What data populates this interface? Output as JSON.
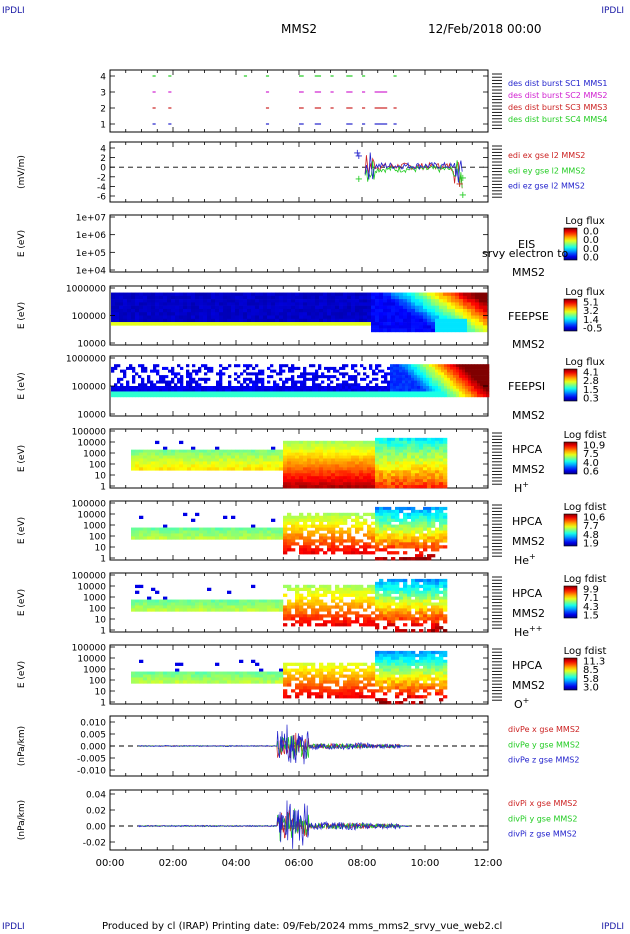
{
  "corners": {
    "tl": "IPDLI",
    "tr": "IPDLI",
    "bl": "IPDLI",
    "br": "IPDLI"
  },
  "header": {
    "spacecraft": "MMS2",
    "date": "12/Feb/2018 00:00"
  },
  "footer": "Produced by cl (IRAP)   Printing date: 09/Feb/2024   mms_mms2_srvy_vue_web2.cl",
  "colors": {
    "blue": "#2222cc",
    "red": "#cc2222",
    "magenta": "#d020d0",
    "green": "#22cc22",
    "black": "#000000"
  },
  "chart_data": [
    {
      "type": "scatter",
      "id": "burst",
      "yticks": [
        "4",
        "3",
        "2",
        "1"
      ],
      "series": [
        {
          "name": "des dist burst SC1 MMS1",
          "color": "#2222cc",
          "level": 1
        },
        {
          "name": "des dist burst SC2 MMS2",
          "color": "#d020d0",
          "level": 3
        },
        {
          "name": "des dist burst SC3 MMS3",
          "color": "#cc2222",
          "level": 2
        },
        {
          "name": "des dist burst SC4 MMS4",
          "color": "#22cc22",
          "level": 4
        }
      ]
    },
    {
      "type": "line",
      "id": "efield",
      "ylabel": "(mV/m)",
      "yticks": [
        "4",
        "2",
        "0",
        "-2",
        "-4",
        "-6"
      ],
      "series": [
        {
          "name": "edi ex gse l2 MMS2",
          "color": "#cc2222"
        },
        {
          "name": "edi ey gse l2 MMS2",
          "color": "#22cc22"
        },
        {
          "name": "edi ez gse l2 MMS2",
          "color": "#2222cc"
        }
      ]
    },
    {
      "type": "heatmap",
      "id": "eis",
      "ylabel": "E (eV)",
      "yticks": [
        "1e+07",
        "1e+06",
        "1e+05",
        "1e+04"
      ],
      "instrument": "EIS",
      "spacecraft": "MMS2",
      "overlay": "srvy electron to",
      "colorbar": {
        "title": "Log flux",
        "ticks": [
          "0.0",
          "0.0",
          "0.0",
          "0.0"
        ]
      }
    },
    {
      "type": "heatmap",
      "id": "feepse",
      "ylabel": "E (eV)",
      "yticks": [
        "1000000",
        "100000",
        "10000"
      ],
      "instrument": "FEEPSE",
      "spacecraft": "MMS2",
      "colorbar": {
        "title": "Log flux",
        "ticks": [
          "5.1",
          "3.2",
          "1.4",
          "-0.5"
        ]
      }
    },
    {
      "type": "heatmap",
      "id": "feepsi",
      "ylabel": "E (eV)",
      "yticks": [
        "1000000",
        "100000",
        "10000"
      ],
      "instrument": "FEEPSI",
      "spacecraft": "MMS2",
      "colorbar": {
        "title": "Log flux",
        "ticks": [
          "4.1",
          "2.8",
          "1.5",
          "0.3"
        ]
      }
    },
    {
      "type": "heatmap",
      "id": "hpca_h",
      "ylabel": "E (eV)",
      "yticks": [
        "100000",
        "10000",
        "1000",
        "100",
        "10",
        "1"
      ],
      "instrument": "HPCA",
      "spacecraft": "MMS2",
      "species": "H",
      "charge": "+",
      "colorbar": {
        "title": "Log fdist",
        "ticks": [
          "10.9",
          "7.5",
          "4.0",
          "0.6"
        ]
      }
    },
    {
      "type": "heatmap",
      "id": "hpca_he1",
      "ylabel": "E (eV)",
      "yticks": [
        "100000",
        "10000",
        "1000",
        "100",
        "10",
        "1"
      ],
      "instrument": "HPCA",
      "spacecraft": "MMS2",
      "species": "He",
      "charge": "+",
      "colorbar": {
        "title": "Log fdist",
        "ticks": [
          "10.6",
          "7.7",
          "4.8",
          "1.9"
        ]
      }
    },
    {
      "type": "heatmap",
      "id": "hpca_he2",
      "ylabel": "E (eV)",
      "yticks": [
        "100000",
        "10000",
        "1000",
        "100",
        "10",
        "1"
      ],
      "instrument": "HPCA",
      "spacecraft": "MMS2",
      "species": "He",
      "charge": "++",
      "colorbar": {
        "title": "Log fdist",
        "ticks": [
          "9.9",
          "7.1",
          "4.3",
          "1.5"
        ]
      }
    },
    {
      "type": "heatmap",
      "id": "hpca_o",
      "ylabel": "E (eV)",
      "yticks": [
        "100000",
        "10000",
        "1000",
        "100",
        "10",
        "1"
      ],
      "instrument": "HPCA",
      "spacecraft": "MMS2",
      "species": "O",
      "charge": "+",
      "colorbar": {
        "title": "Log fdist",
        "ticks": [
          "11.3",
          "8.5",
          "5.8",
          "3.0"
        ]
      }
    },
    {
      "type": "line",
      "id": "divpe",
      "ylabel": "(nPa/km)",
      "yticks": [
        "0.010",
        "0.005",
        "0.000",
        "-0.005",
        "-0.010"
      ],
      "ylim": [
        -0.0125,
        0.0125
      ],
      "series": [
        {
          "name": "divPe x gse MMS2",
          "color": "#cc2222"
        },
        {
          "name": "divPe y gse MMS2",
          "color": "#22cc22"
        },
        {
          "name": "divPe z gse MMS2",
          "color": "#2222cc"
        }
      ]
    },
    {
      "type": "line",
      "id": "divpi",
      "ylabel": "(nPa/km)",
      "yticks": [
        "0.04",
        "0.02",
        "0.00",
        "-0.02"
      ],
      "ylim": [
        -0.03,
        0.045
      ],
      "series": [
        {
          "name": "divPi x gse MMS2",
          "color": "#cc2222"
        },
        {
          "name": "divPi y gse MMS2",
          "color": "#22cc22"
        },
        {
          "name": "divPi z gse MMS2",
          "color": "#2222cc"
        }
      ]
    }
  ],
  "xaxis": {
    "ticks": [
      "00:00",
      "02:00",
      "04:00",
      "06:00",
      "08:00",
      "10:00",
      "12:00"
    ]
  }
}
